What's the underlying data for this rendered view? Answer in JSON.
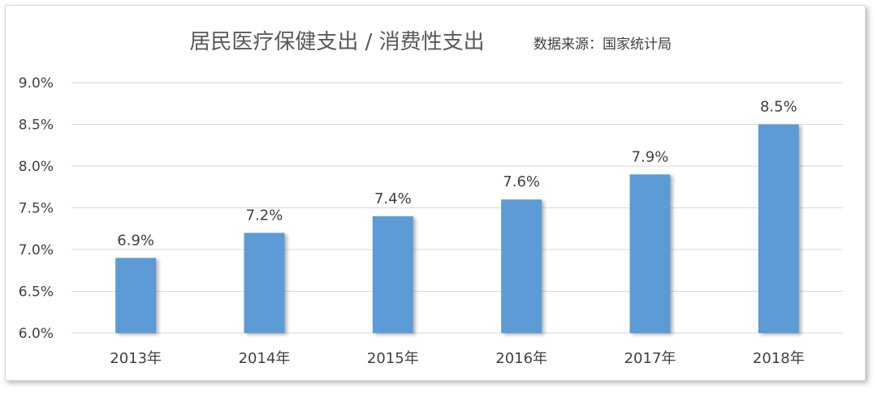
{
  "chart_data": {
    "type": "bar",
    "title": "居民医疗保健支出 / 消费性支出",
    "subtitle": "数据来源：国家统计局",
    "categories": [
      "2013年",
      "2014年",
      "2015年",
      "2016年",
      "2017年",
      "2018年"
    ],
    "values": [
      6.9,
      7.2,
      7.4,
      7.6,
      7.9,
      8.5
    ],
    "value_labels": [
      "6.9%",
      "7.2%",
      "7.4%",
      "7.6%",
      "7.9%",
      "8.5%"
    ],
    "ylim": [
      6.0,
      9.0
    ],
    "yticks": [
      6.0,
      6.5,
      7.0,
      7.5,
      8.0,
      8.5,
      9.0
    ],
    "ytick_labels": [
      "6.0%",
      "6.5%",
      "7.0%",
      "7.5%",
      "8.0%",
      "8.5%",
      "9.0%"
    ],
    "grid": true,
    "legend": "none",
    "colors": {
      "bar": "#5b9bd5",
      "grid": "#d9d9d9",
      "text": "#404040",
      "title": "#595959"
    }
  }
}
